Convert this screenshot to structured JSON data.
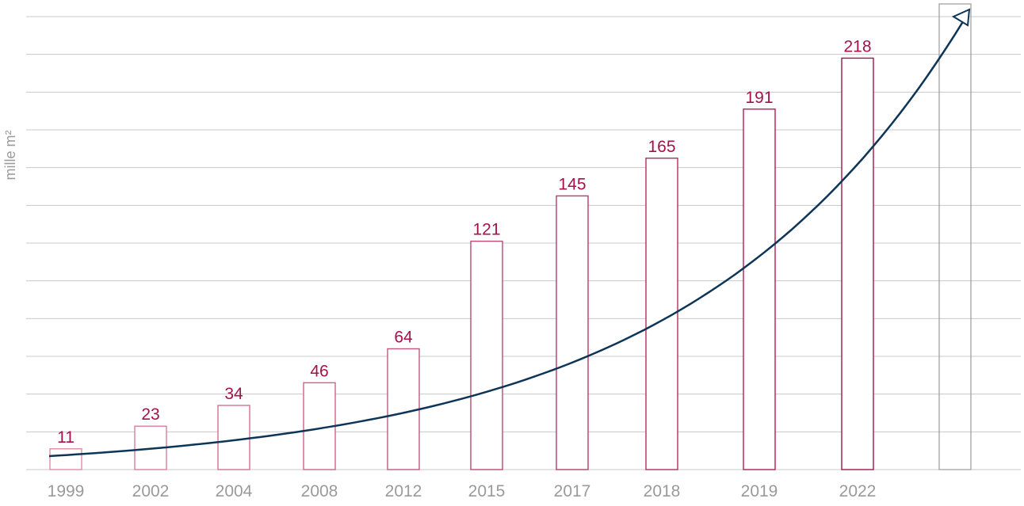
{
  "chart_data": {
    "type": "bar",
    "ylabel": "mille m²",
    "categories": [
      "1999",
      "2002",
      "2004",
      "2008",
      "2012",
      "2015",
      "2017",
      "2018",
      "2019",
      "2022",
      ""
    ],
    "values": [
      11,
      23,
      34,
      46,
      64,
      121,
      145,
      165,
      191,
      218,
      null
    ],
    "value_labels": [
      "11",
      "23",
      "34",
      "46",
      "64",
      "121",
      "145",
      "165",
      "191",
      "218",
      ""
    ],
    "ylim": [
      0,
      240
    ],
    "grid": true,
    "trend_arrow": true,
    "bar_color_light": "#e08aaa",
    "bar_color_dark": "#a3134a",
    "label_color": "#a3134a",
    "future_bar_color": "#9a9a9a",
    "arrow_color": "#0d3558",
    "grid_color": "#c8c8c8",
    "tick_color": "#9a9a9a"
  }
}
